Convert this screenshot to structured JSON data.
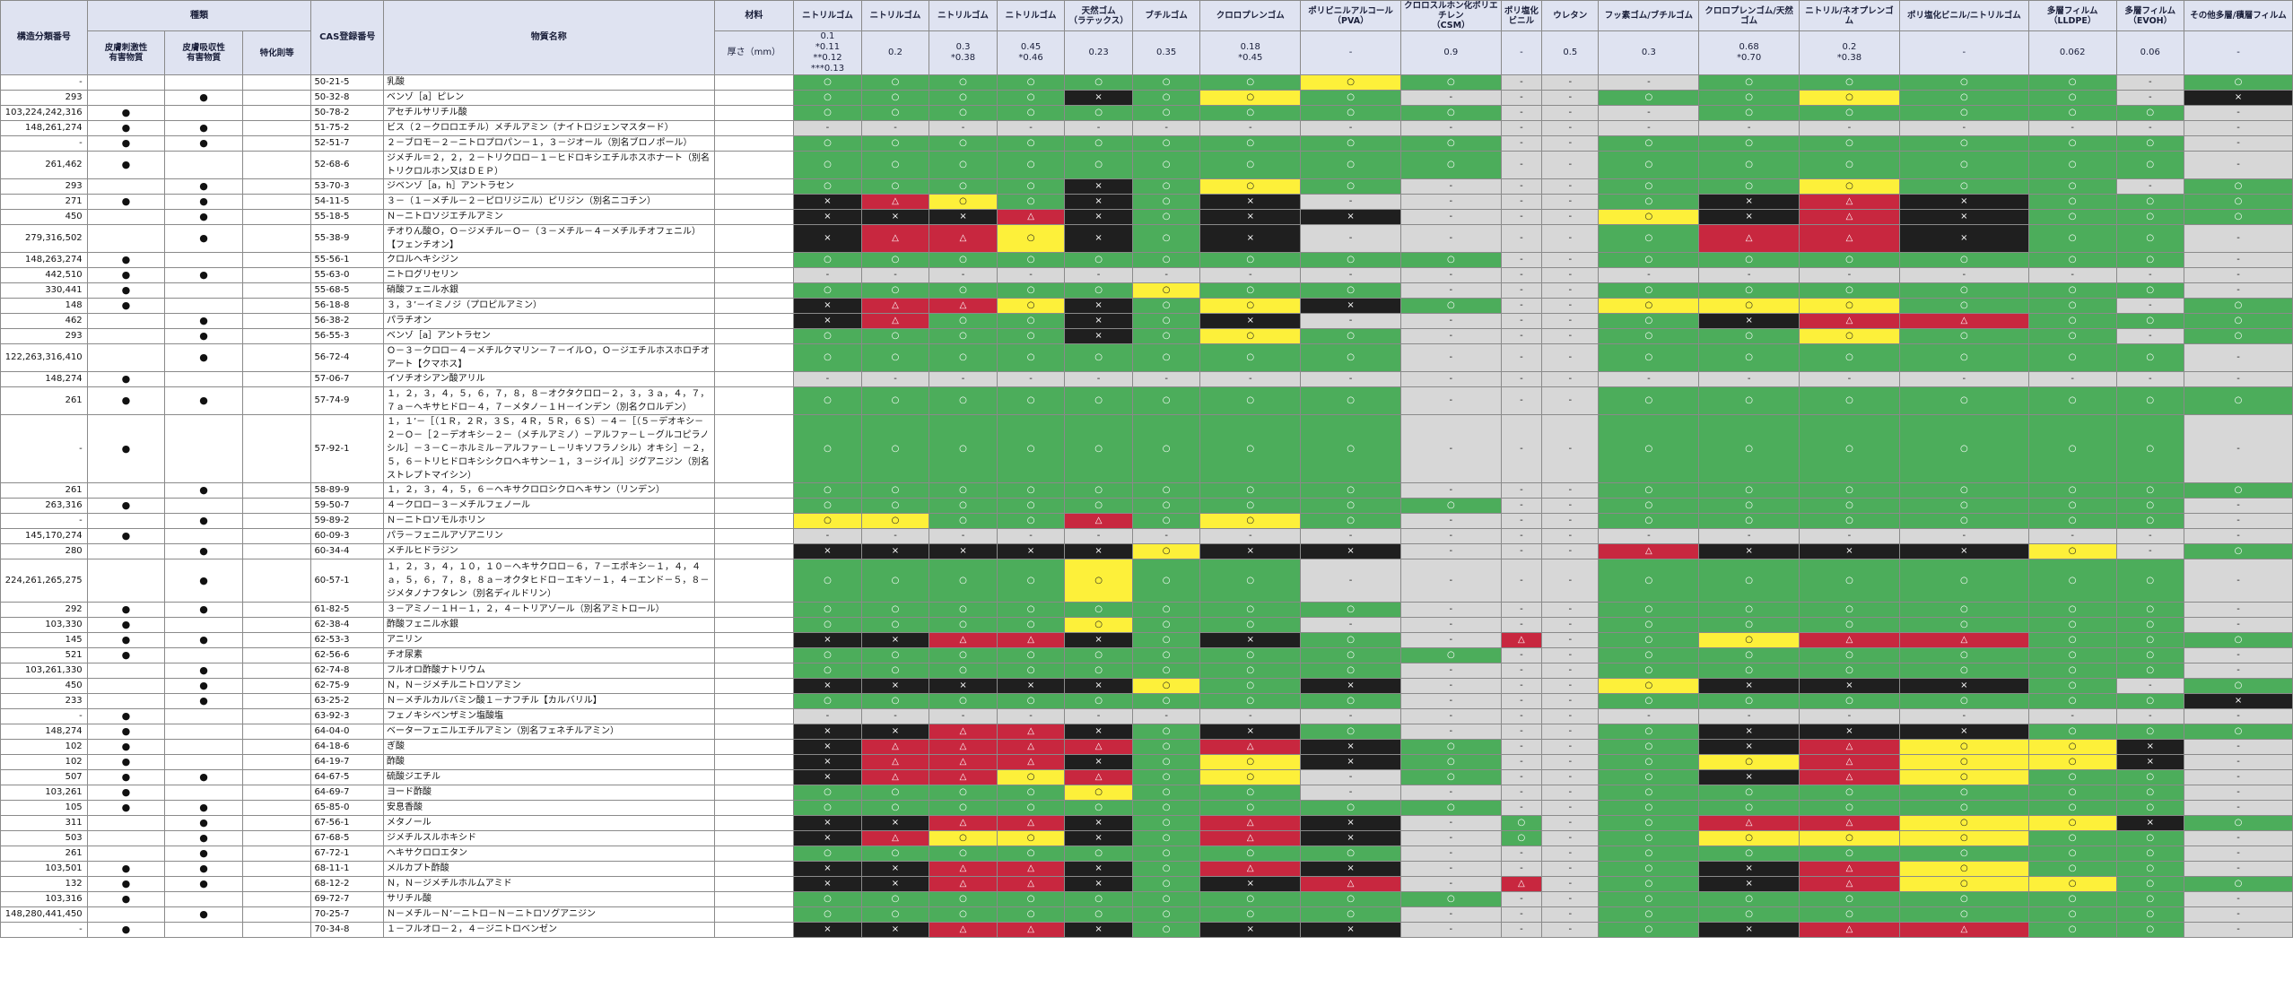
{
  "header": {
    "structure_no": "構造分類番号",
    "category": "種類",
    "cat_cols": [
      "皮膚刺激性\n有害物質",
      "皮膚吸収性\n有害物質",
      "特化則等"
    ],
    "cas": "CAS登録番号",
    "substance": "物質名称",
    "material": "材料",
    "thickness": "厚さ（mm）"
  },
  "materials": [
    {
      "name": "ニトリルゴム",
      "thick": "0.1\n*0.11\n**0.12\n***0.13"
    },
    {
      "name": "ニトリルゴム",
      "thick": "0.2"
    },
    {
      "name": "ニトリルゴム",
      "thick": "0.3\n*0.38"
    },
    {
      "name": "ニトリルゴム",
      "thick": "0.45\n*0.46"
    },
    {
      "name": "天然ゴム\n（ラテックス）",
      "thick": "0.23"
    },
    {
      "name": "ブチルゴム",
      "thick": "0.35"
    },
    {
      "name": "クロロプレンゴム",
      "thick": "0.18\n*0.45"
    },
    {
      "name": "ポリビニルアルコール\n（PVA）",
      "thick": "-"
    },
    {
      "name": "クロロスルホン化ポリエチレン\n（CSM）",
      "thick": "0.9"
    },
    {
      "name": "ポリ塩化ビニル",
      "thick": "-"
    },
    {
      "name": "ウレタン",
      "thick": "0.5"
    },
    {
      "name": "フッ素ゴム/ブチルゴム",
      "thick": "0.3"
    },
    {
      "name": "クロロプレンゴム/天然ゴム",
      "thick": "0.68\n*0.70"
    },
    {
      "name": "ニトリル/ネオプレンゴム",
      "thick": "0.2\n*0.38"
    },
    {
      "name": "ポリ塩化ビニル/ニトリルゴム",
      "thick": "-"
    },
    {
      "name": "多層フィルム（LLDPE）",
      "thick": "0.062"
    },
    {
      "name": "多層フィルム\n（EVOH）",
      "thick": "0.06"
    },
    {
      "name": "その他多層/積層フィルム",
      "thick": "-"
    }
  ],
  "rows": [
    {
      "no": "-",
      "irr": "",
      "abs": "",
      "tok": "",
      "cas": "50-21-5",
      "name": "乳酸",
      "r": "gggggggygnnnggggng"
    },
    {
      "no": "293",
      "irr": "",
      "abs": "●",
      "tok": "",
      "cas": "50-32-8",
      "name": "ベンゾ［a］ピレン",
      "r": "ggggkgygnnnggyggnk"
    },
    {
      "no": "103,224,242,316",
      "irr": "●",
      "abs": "",
      "tok": "",
      "cas": "50-78-2",
      "name": "アセチルサリチル酸",
      "r": "gggggggggnnngggggn"
    },
    {
      "no": "148,261,274",
      "irr": "●",
      "abs": "●",
      "tok": "",
      "cas": "51-75-2",
      "name": "ビス（２－クロロエチル）メチルアミン（ナイトロジェンマスタード）",
      "r": "nnnnnnnnnnnnnnnnnn"
    },
    {
      "no": "-",
      "irr": "●",
      "abs": "●",
      "tok": "",
      "cas": "52-51-7",
      "name": "２－ブロモ－２－ニトロプロパン－１，３－ジオール（別名ブロノポール）",
      "r": "gggggggggnnggggggn"
    },
    {
      "no": "261,462",
      "irr": "●",
      "abs": "",
      "tok": "",
      "cas": "52-68-6",
      "name": "ジメチル＝２，２，２－トリクロロ－１－ヒドロキシエチルホスホナート（別名トリクロルホン又はＤＥＰ）",
      "r": "gggggggggnnggggggn",
      "tall": true
    },
    {
      "no": "293",
      "irr": "",
      "abs": "●",
      "tok": "",
      "cas": "53-70-3",
      "name": "ジベンゾ［a，h］アントラセン",
      "r": "ggggkgygnnnggyggng"
    },
    {
      "no": "271",
      "irr": "●",
      "abs": "●",
      "tok": "",
      "cas": "54-11-5",
      "name": "３－（１－メチル－２－ピロリジニル）ピリジン（別名ニコチン）",
      "r": "krygkgknnnngkrkggg"
    },
    {
      "no": "450",
      "irr": "",
      "abs": "●",
      "tok": "",
      "cas": "55-18-5",
      "name": "Ｎ－ニトロソジエチルアミン",
      "r": "kkkrkgkknnnykrkggg"
    },
    {
      "no": "279,316,502",
      "irr": "",
      "abs": "●",
      "tok": "",
      "cas": "55-38-9",
      "name": "チオりん酸Ｏ，Ｏ－ジメチル－Ｏ－（３－メチル－４－メチルチオフェニル）【フェンチオン】",
      "r": "krrykgknnnngrrkggn",
      "tall": true
    },
    {
      "no": "148,263,274",
      "irr": "●",
      "abs": "",
      "tok": "",
      "cas": "55-56-1",
      "name": "クロルヘキシジン",
      "r": "gggggggggnnggggggn"
    },
    {
      "no": "442,510",
      "irr": "●",
      "abs": "●",
      "tok": "",
      "cas": "55-63-0",
      "name": "ニトログリセリン",
      "r": "nnnnnnnnnnnnnnnnnn"
    },
    {
      "no": "330,441",
      "irr": "●",
      "abs": "",
      "tok": "",
      "cas": "55-68-5",
      "name": "硝酸フェニル水銀",
      "r": "gggggyggnnnggggggn"
    },
    {
      "no": "148",
      "irr": "●",
      "abs": "",
      "tok": "",
      "cas": "56-18-8",
      "name": "３，３’－イミノジ（プロピルアミン）",
      "r": "krrykgykgnnyyyggng"
    },
    {
      "no": "462",
      "irr": "",
      "abs": "●",
      "tok": "",
      "cas": "56-38-2",
      "name": "パラチオン",
      "r": "krggkgknnnngkrrggg"
    },
    {
      "no": "293",
      "irr": "",
      "abs": "●",
      "tok": "",
      "cas": "56-55-3",
      "name": "ベンゾ［a］アントラセン",
      "r": "ggggkgygnnnggyggng"
    },
    {
      "no": "122,263,316,410",
      "irr": "",
      "abs": "●",
      "tok": "",
      "cas": "56-72-4",
      "name": "Ｏ－３－クロロ－４－メチルクマリン－７－イルＯ，Ｏ－ジエチルホスホロチオアート【クマホス】",
      "r": "ggggggggnnnggggggn",
      "tall": true
    },
    {
      "no": "148,274",
      "irr": "●",
      "abs": "",
      "tok": "",
      "cas": "57-06-7",
      "name": "イソチオシアン酸アリル",
      "r": "nnnnnnnnnnnnnnnnnn"
    },
    {
      "no": "261",
      "irr": "●",
      "abs": "●",
      "tok": "",
      "cas": "57-74-9",
      "name": "１，２，３，４，５，６，７，８，８－オクタクロロ－２，３，３ａ，４，７，７ａ－ヘキサヒドロ－４，７－メタノ－１Ｈ－インデン（別名クロルデン）",
      "r": "ggggggggnnnggggggg",
      "tall": true
    },
    {
      "no": "-",
      "irr": "●",
      "abs": "",
      "tok": "",
      "cas": "57-92-1",
      "name": "１，１’－［（１Ｒ，２Ｒ，３Ｓ，４Ｒ，５Ｒ，６Ｓ）－４－［（５－デオキシ－２－Ｏ－［２－デオキシ－２－（メチルアミノ）－アルファ－Ｌ－グルコピラノシル］－３－Ｃ－ホルミル－アルファ－Ｌ－リキソフラノシル）オキシ］－２，５，６－トリヒドロキシシクロヘキサン－１，３－ジイル］ジグアニジン（別名ストレプトマイシン）",
      "r": "ggggggggnnnggggggn",
      "xtall": true
    },
    {
      "no": "261",
      "irr": "",
      "abs": "●",
      "tok": "",
      "cas": "58-89-9",
      "name": "１，２，３，４，５，６－ヘキサクロロシクロヘキサン（リンデン）",
      "r": "ggggggggnnnggggggg"
    },
    {
      "no": "263,316",
      "irr": "●",
      "abs": "",
      "tok": "",
      "cas": "59-50-7",
      "name": "４－クロロ－３－メチルフェノール",
      "r": "gggggggggnnggggggn"
    },
    {
      "no": "-",
      "irr": "",
      "abs": "●",
      "tok": "",
      "cas": "59-89-2",
      "name": "Ｎ－ニトロソモルホリン",
      "r": "yyggrgygnnnggggggn"
    },
    {
      "no": "145,170,274",
      "irr": "●",
      "abs": "",
      "tok": "",
      "cas": "60-09-3",
      "name": "パラ－フェニルアゾアニリン",
      "r": "nnnnnnnnnnnnnnnnnn"
    },
    {
      "no": "280",
      "irr": "",
      "abs": "●",
      "tok": "",
      "cas": "60-34-4",
      "name": "メチルヒドラジン",
      "r": "kkkkkykknnnrkkkyng"
    },
    {
      "no": "224,261,265,275",
      "irr": "",
      "abs": "●",
      "tok": "",
      "cas": "60-57-1",
      "name": "１，２，３，４，１０，１０－ヘキサクロロ－６，７－エポキシ－１，４，４ａ，５，６，７，８，８ａ－オクタヒドロ－エキソ－１，４－エンド－５，８－ジメタノナフタレン（別名ディルドリン）",
      "r": "ggggyggnnnnggggggn",
      "xtall2": true
    },
    {
      "no": "292",
      "irr": "●",
      "abs": "●",
      "tok": "",
      "cas": "61-82-5",
      "name": "３－アミノ－１Ｈ－１，２，４－トリアゾール（別名アミトロール）",
      "r": "ggggggggnnnggggggn"
    },
    {
      "no": "103,330",
      "irr": "●",
      "abs": "",
      "tok": "",
      "cas": "62-38-4",
      "name": "酢酸フェニル水銀",
      "r": "ggggyggnnnnggggggn"
    },
    {
      "no": "145",
      "irr": "●",
      "abs": "●",
      "tok": "",
      "cas": "62-53-3",
      "name": "アニリン",
      "r": "kkrrkgkgnrngyrrggg"
    },
    {
      "no": "521",
      "irr": "●",
      "abs": "",
      "tok": "",
      "cas": "62-56-6",
      "name": "チオ尿素",
      "r": "gggggggggnnggggggn"
    },
    {
      "no": "103,261,330",
      "irr": "",
      "abs": "●",
      "tok": "",
      "cas": "62-74-8",
      "name": "フルオロ酢酸ナトリウム",
      "r": "ggggggggnnnggggggn"
    },
    {
      "no": "450",
      "irr": "",
      "abs": "●",
      "tok": "",
      "cas": "62-75-9",
      "name": "Ｎ，Ｎ－ジメチルニトロソアミン",
      "r": "kkkkkygknnnykkkgng"
    },
    {
      "no": "233",
      "irr": "",
      "abs": "●",
      "tok": "",
      "cas": "63-25-2",
      "name": "Ｎ－メチルカルバミン酸１－ナフチル【カルバリル】",
      "r": "ggggggggnnnggggggk"
    },
    {
      "no": "-",
      "irr": "●",
      "abs": "",
      "tok": "",
      "cas": "63-92-3",
      "name": "フェノキシベンザミン塩酸塩",
      "r": "nnnnnnnnnnnnnnnnnn"
    },
    {
      "no": "148,274",
      "irr": "●",
      "abs": "",
      "tok": "",
      "cas": "64-04-0",
      "name": "ベーターフェニルエチルアミン（別名フェネチルアミン）",
      "r": "kkrrkgkgnnngkkkggg"
    },
    {
      "no": "102",
      "irr": "●",
      "abs": "",
      "tok": "",
      "cas": "64-18-6",
      "name": "ぎ酸",
      "r": "krrrrgrkgnngkryykn"
    },
    {
      "no": "102",
      "irr": "●",
      "abs": "",
      "tok": "",
      "cas": "64-19-7",
      "name": "酢酸",
      "r": "krrrkgykgnngyryykn"
    },
    {
      "no": "507",
      "irr": "●",
      "abs": "●",
      "tok": "",
      "cas": "64-67-5",
      "name": "硫酸ジエチル",
      "r": "krryrgyngnngkryggn"
    },
    {
      "no": "103,261",
      "irr": "●",
      "abs": "",
      "tok": "",
      "cas": "64-69-7",
      "name": "ヨード酢酸",
      "r": "ggggyggnnnnggggggn"
    },
    {
      "no": "105",
      "irr": "●",
      "abs": "●",
      "tok": "",
      "cas": "65-85-0",
      "name": "安息香酸",
      "r": "gggggggggnnggggggn"
    },
    {
      "no": "311",
      "irr": "",
      "abs": "●",
      "tok": "",
      "cas": "67-56-1",
      "name": "メタノール",
      "r": "kkrrkgrkngngrryykg"
    },
    {
      "no": "503",
      "irr": "",
      "abs": "●",
      "tok": "",
      "cas": "67-68-5",
      "name": "ジメチルスルホキシド",
      "r": "kryykgrkngngyyyggn"
    },
    {
      "no": "261",
      "irr": "",
      "abs": "●",
      "tok": "",
      "cas": "67-72-1",
      "name": "ヘキサクロロエタン",
      "r": "ggggggggnnnggggggn"
    },
    {
      "no": "103,501",
      "irr": "●",
      "abs": "●",
      "tok": "",
      "cas": "68-11-1",
      "name": "メルカプト酢酸",
      "r": "kkrrkgrknnngkryggn"
    },
    {
      "no": "132",
      "irr": "●",
      "abs": "●",
      "tok": "",
      "cas": "68-12-2",
      "name": "Ｎ，Ｎ－ジメチルホルムアミド",
      "r": "kkrrkgkrnrngkryygg"
    },
    {
      "no": "103,316",
      "irr": "●",
      "abs": "",
      "tok": "",
      "cas": "69-72-7",
      "name": "サリチル酸",
      "r": "gggggggggnnggggggn"
    },
    {
      "no": "148,280,441,450",
      "irr": "",
      "abs": "●",
      "tok": "",
      "cas": "70-25-7",
      "name": "Ｎ－メチル－Ｎ’－ニトロ－Ｎ－ニトロソグアニジン",
      "r": "ggggggggnnnggggggn"
    },
    {
      "no": "-",
      "irr": "●",
      "abs": "",
      "tok": "",
      "cas": "70-34-8",
      "name": "１－フルオロ－２，４－ジニトロベンゼン",
      "r": "kkrrkgkknnngkrrggn"
    }
  ],
  "symbols": {
    "g": "○",
    "y": "○",
    "r": "△",
    "k": "×",
    "n": "-"
  },
  "colors": {
    "g": "#4cad5b",
    "y": "#fdf03a",
    "r": "#c8273f",
    "k": "#1f1f1f",
    "n": "#d7d7d7",
    "header": "#dfe3f1"
  }
}
